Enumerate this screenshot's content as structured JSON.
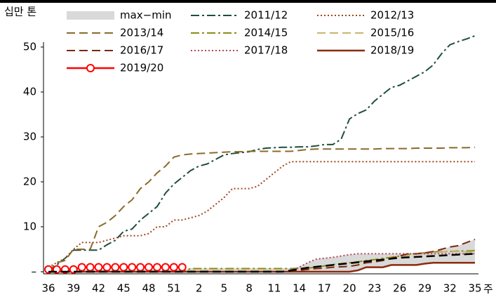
{
  "chart_data": {
    "type": "line",
    "y_label": "십만 톤",
    "x_label": "주",
    "categories": [
      "36",
      null,
      null,
      "39",
      null,
      null,
      "42",
      null,
      null,
      "45",
      null,
      null,
      "48",
      null,
      null,
      "51",
      null,
      null,
      "2",
      null,
      null,
      "5",
      null,
      null,
      "8",
      null,
      null,
      "11",
      null,
      null,
      "14",
      null,
      null,
      "17",
      null,
      null,
      "20",
      null,
      null,
      "23",
      null,
      null,
      "26",
      null,
      null,
      "29",
      null,
      null,
      "32",
      null,
      null,
      "35"
    ],
    "ylim": [
      0,
      50
    ],
    "yticks": [
      {
        "value": 0,
        "label": "–"
      },
      10,
      20,
      30,
      40,
      50
    ],
    "series": [
      {
        "name": "max−min",
        "style": "band",
        "color": "#d9d9d9",
        "values": [
          0.2,
          0.2,
          0.2,
          0.2,
          0.2,
          0.2,
          0.2,
          0.2,
          0.2,
          0.2,
          0.2,
          0.2,
          0.2,
          0.2,
          0.2,
          0.2,
          0.2,
          0.8,
          0.8,
          0.8,
          0.8,
          0.8,
          0.8,
          0.8,
          0.8,
          0.8,
          0.8,
          0.8,
          0.8,
          0.8,
          1.2,
          2,
          2.8,
          3,
          3.2,
          3.5,
          3.8,
          4,
          4,
          4,
          4,
          4,
          4,
          4,
          4.2,
          4.4,
          4.5,
          5,
          5.5,
          5.8,
          6.5,
          7.2
        ],
        "min": [
          0,
          0,
          0,
          0,
          0,
          0,
          0,
          0,
          0,
          0,
          0,
          0,
          0,
          0,
          0,
          0,
          0,
          0,
          0,
          0,
          0,
          0,
          0,
          0,
          0,
          0,
          0,
          0,
          0,
          0,
          0,
          0,
          0,
          0,
          0,
          0,
          0,
          0.3,
          1,
          1,
          1,
          1.5,
          1.5,
          1.5,
          1.5,
          1.8,
          2,
          2,
          2,
          2,
          2,
          2
        ]
      },
      {
        "name": "2011/12",
        "style": "dashdot",
        "color": "#1f4e3d",
        "values": [
          0,
          1.5,
          3,
          4.8,
          4.8,
          4.8,
          4.8,
          6,
          7,
          9,
          9.5,
          11.5,
          13,
          14.5,
          17.5,
          19.5,
          21,
          22.5,
          23.5,
          24,
          25,
          26,
          26.3,
          26.5,
          26.7,
          27.2,
          27.5,
          27.6,
          27.7,
          27.7,
          27.8,
          27.8,
          28,
          28.3,
          28.3,
          29.5,
          34,
          35.2,
          36,
          38,
          39.5,
          41,
          41.5,
          42.5,
          43.5,
          44.5,
          46,
          48.5,
          50.5,
          51.2,
          51.8,
          52.5
        ]
      },
      {
        "name": "2012/13",
        "style": "dot",
        "color": "#a0461e",
        "values": [
          1,
          2,
          3,
          5,
          6.5,
          6.5,
          6.5,
          7,
          7.5,
          8,
          8,
          8,
          8.5,
          10,
          10,
          11.5,
          11.5,
          12,
          12.5,
          13.5,
          15,
          16.5,
          18.5,
          18.5,
          18.5,
          19,
          20.5,
          22,
          23.5,
          24.5,
          24.5,
          24.5,
          24.5,
          24.5,
          24.5,
          24.5,
          24.5,
          24.5,
          24.5,
          24.5,
          24.5,
          24.5,
          24.5,
          24.5,
          24.5,
          24.5,
          24.5,
          24.5,
          24.5,
          24.5,
          24.5,
          24.5
        ]
      },
      {
        "name": "2013/14",
        "style": "dash",
        "color": "#8b6a2b",
        "values": [
          0,
          2,
          2.5,
          5,
          5,
          5,
          10,
          11,
          12.5,
          14.5,
          16,
          18.5,
          20,
          22,
          23.5,
          25.5,
          26,
          26.2,
          26.3,
          26.4,
          26.5,
          26.6,
          26.7,
          26.7,
          26.8,
          26.8,
          26.8,
          26.8,
          26.8,
          26.8,
          27,
          27.2,
          27.3,
          27.3,
          27.3,
          27.3,
          27.3,
          27.3,
          27.3,
          27.3,
          27.4,
          27.4,
          27.4,
          27.4,
          27.5,
          27.5,
          27.5,
          27.5,
          27.6,
          27.6,
          27.6,
          27.7
        ]
      },
      {
        "name": "2014/15",
        "style": "dashdot",
        "color": "#8c8c14",
        "values": [
          0,
          0,
          0,
          0,
          0,
          0,
          0,
          0,
          0,
          0,
          0,
          0,
          0,
          0,
          0,
          0,
          0,
          0.7,
          0.7,
          0.7,
          0.7,
          0.7,
          0.7,
          0.7,
          0.7,
          0.7,
          0.7,
          0.7,
          0.7,
          0.7,
          0.7,
          0.8,
          1,
          1.3,
          1.6,
          1.8,
          2,
          2.2,
          2.5,
          2.7,
          3,
          3.2,
          3.5,
          3.8,
          4,
          4.2,
          4.4,
          4.5,
          4.5,
          4.6,
          4.6,
          4.7
        ]
      },
      {
        "name": "2015/16",
        "style": "dash",
        "color": "#c9b56e",
        "values": [
          0.2,
          0.2,
          0.2,
          0.2,
          0.2,
          0.2,
          0.2,
          0.2,
          0.2,
          0.2,
          0.2,
          0.2,
          0.2,
          0.2,
          0.2,
          0.2,
          0.2,
          0.2,
          0.2,
          0.2,
          0.2,
          0.2,
          0.2,
          0.2,
          0.2,
          0.2,
          0.2,
          0.2,
          0.2,
          0.2,
          0.5,
          0.8,
          1,
          1.2,
          1.4,
          1.6,
          1.8,
          2,
          2.2,
          2.5,
          2.8,
          3,
          3.3,
          3.6,
          3.9,
          4.1,
          4.3,
          4.4,
          4.5,
          4.5,
          4.4,
          4.4
        ]
      },
      {
        "name": "2016/17",
        "style": "dash",
        "color": "#7a2812",
        "values": [
          0,
          0,
          0,
          0,
          0,
          0,
          0,
          0,
          0,
          0,
          0,
          0,
          0,
          0,
          0,
          0,
          0,
          0,
          0,
          0,
          0,
          0,
          0,
          0,
          0,
          0,
          0,
          0,
          0,
          0,
          0.3,
          0.5,
          0.7,
          0.8,
          1,
          1.1,
          1.2,
          1.5,
          2,
          2.2,
          2.5,
          3,
          3.5,
          4,
          4,
          4.2,
          4.5,
          5,
          5.5,
          5.8,
          6.5,
          7.2
        ]
      },
      {
        "name": "2017/18",
        "style": "dot",
        "color": "#b0485a",
        "values": [
          0,
          0,
          0,
          0,
          0,
          0,
          0,
          0,
          0,
          0,
          0,
          0,
          0,
          0,
          0,
          0,
          0,
          0,
          0,
          0,
          0,
          0,
          0,
          0,
          0,
          0,
          0,
          0,
          0,
          0,
          1,
          2,
          2.8,
          3,
          3.2,
          3.5,
          3.8,
          4,
          4,
          4,
          4,
          4,
          4,
          4,
          4,
          4,
          4,
          4,
          4,
          4,
          4,
          4
        ]
      },
      {
        "name": "2018/19",
        "style": "solid",
        "color": "#8b2a0e",
        "values": [
          0,
          0,
          0,
          0,
          0,
          0,
          0,
          0,
          0,
          0,
          0,
          0,
          0,
          0,
          0,
          0,
          0,
          0,
          0,
          0,
          0,
          0,
          0,
          0,
          0,
          0,
          0,
          0,
          0,
          0,
          0,
          0,
          0,
          0,
          0,
          0,
          0,
          0.3,
          1,
          1,
          1,
          1.5,
          1.5,
          1.5,
          1.5,
          1.8,
          2,
          2,
          2,
          2,
          2,
          2
        ]
      },
      {
        "name": "2019/20",
        "style": "solid",
        "marker": "circle",
        "color": "#ff0000",
        "values": [
          0.5,
          0.5,
          0.5,
          0.5,
          1,
          1,
          1,
          1,
          1,
          1,
          1,
          1,
          1,
          1,
          1,
          1,
          1,
          null,
          null,
          null,
          null,
          null,
          null,
          null,
          null,
          null,
          null,
          null,
          null,
          null,
          null,
          null,
          null,
          null,
          null,
          null,
          null,
          null,
          null,
          null,
          null,
          null,
          null,
          null,
          null,
          null,
          null,
          null,
          null,
          null,
          null,
          null
        ]
      },
      {
        "style": "dash",
        "color": "#000000",
        "values": [
          0,
          0,
          0,
          0,
          0,
          0,
          0,
          0,
          0,
          0,
          0,
          0,
          0,
          0,
          0,
          0,
          0,
          0,
          0,
          0,
          0,
          0,
          0,
          0,
          0,
          0,
          0,
          0,
          0,
          0.3,
          0.6,
          0.9,
          1.1,
          1.3,
          1.5,
          1.7,
          1.9,
          2.1,
          2.3,
          2.5,
          2.7,
          2.9,
          3.1,
          3.2,
          3.3,
          3.4,
          3.5,
          3.6,
          3.7,
          3.8,
          3.9,
          4
        ]
      }
    ]
  }
}
